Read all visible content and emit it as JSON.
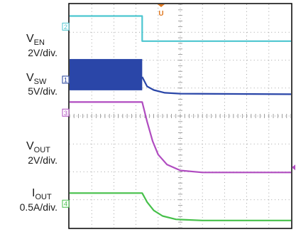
{
  "chart_data": {
    "type": "line",
    "title": "",
    "grid": true,
    "divisions": {
      "x": 10,
      "y": 8
    },
    "trigger_marker": "U",
    "channels": [
      {
        "id": "2",
        "name_main": "V",
        "name_sub": "EN",
        "scale": "2V/div.",
        "color": "#4cc6d0",
        "marker_color": "#4cc6d0",
        "points": [
          [
            0,
            7.58
          ],
          [
            3.28,
            7.58
          ],
          [
            3.28,
            6.68
          ],
          [
            10,
            6.68
          ]
        ]
      },
      {
        "id": "1",
        "name_main": "V",
        "name_sub": "SW",
        "scale": "5V/div.",
        "color": "#2a46a8",
        "marker_color": "#1f3c9a",
        "band": {
          "x_start": 0,
          "x_end": 3.28,
          "y_top": 6.04,
          "y_bottom": 4.92
        },
        "points": [
          [
            3.28,
            5.4
          ],
          [
            3.5,
            5.06
          ],
          [
            3.8,
            4.93
          ],
          [
            4.3,
            4.83
          ],
          [
            5.0,
            4.8
          ],
          [
            10,
            4.78
          ]
        ]
      },
      {
        "id": "3",
        "name_main": "V",
        "name_sub": "OUT",
        "scale": "2V/div.",
        "color": "#b04cc0",
        "marker_color": "#b04cc0",
        "points": [
          [
            0,
            4.5
          ],
          [
            3.28,
            4.5
          ],
          [
            3.5,
            3.8
          ],
          [
            3.75,
            3.1
          ],
          [
            4.0,
            2.62
          ],
          [
            4.4,
            2.26
          ],
          [
            5.0,
            2.05
          ],
          [
            6.0,
            1.98
          ],
          [
            10,
            1.98
          ]
        ]
      },
      {
        "id": "4",
        "name_main": "I",
        "name_sub": "OUT",
        "scale": "0.5A/div.",
        "color": "#46c04a",
        "marker_color": "#46c04a",
        "points": [
          [
            0,
            1.24
          ],
          [
            3.28,
            1.24
          ],
          [
            3.5,
            0.92
          ],
          [
            3.8,
            0.62
          ],
          [
            4.2,
            0.42
          ],
          [
            4.8,
            0.3
          ],
          [
            6.0,
            0.26
          ],
          [
            10,
            0.26
          ]
        ]
      }
    ]
  }
}
